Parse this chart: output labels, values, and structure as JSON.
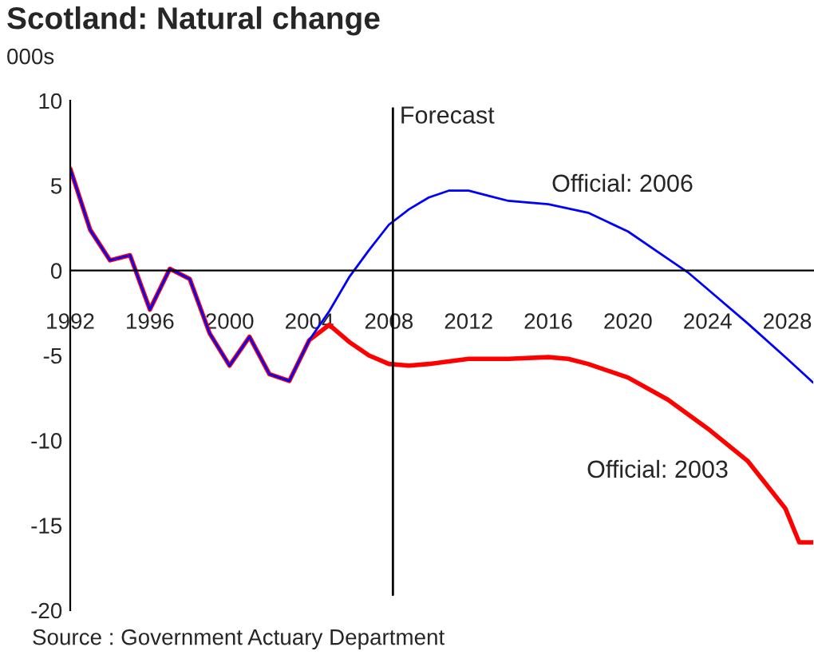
{
  "chart_data": {
    "type": "line",
    "title": "Scotland: Natural change",
    "ylabel": "000s",
    "xlim": [
      1992,
      2029.3
    ],
    "xticks": [
      1992,
      1996,
      2000,
      2004,
      2008,
      2012,
      2016,
      2020,
      2024,
      2028
    ],
    "ylim": [
      -20,
      10
    ],
    "yticks": [
      -20,
      -15,
      -10,
      -5,
      0,
      5,
      10
    ],
    "grid": false,
    "legend": false,
    "marker": "none",
    "line_style": "solid",
    "series": [
      {
        "color": "#ff0000",
        "x": [
          1992,
          1993,
          1994,
          1995,
          1996,
          1997,
          1998,
          1999,
          2000,
          2001,
          2002,
          2003,
          2004,
          2005,
          2006,
          2007,
          2008,
          2009,
          2010,
          2012,
          2014,
          2016,
          2017,
          2018,
          2020,
          2022,
          2024,
          2026,
          2027.9,
          2028.6,
          2029.3
        ],
        "values": [
          6,
          2.4,
          0.6,
          0.9,
          -2.3,
          0.1,
          -0.5,
          -3.7,
          -5.6,
          -3.9,
          -6.1,
          -6.5,
          -4.1,
          -3.2,
          -4.2,
          -5.0,
          -5.5,
          -5.6,
          -5.5,
          -5.2,
          -5.2,
          -5.1,
          -5.2,
          -5.5,
          -6.3,
          -7.6,
          -9.3,
          -11.2,
          -14.0,
          -16.0,
          -16.0
        ]
      },
      {
        "color": "#0000ff",
        "x": [
          1992,
          1993,
          1994,
          1995,
          1996,
          1997,
          1998,
          1999,
          2000,
          2001,
          2002,
          2003,
          2004,
          2005,
          2006,
          2007,
          2008,
          2009,
          2010,
          2011,
          2012,
          2013,
          2014,
          2016,
          2018,
          2020,
          2022,
          2023,
          2024,
          2026,
          2028,
          2029.3
        ],
        "values": [
          6,
          2.4,
          0.6,
          0.9,
          -2.3,
          0.1,
          -0.5,
          -3.7,
          -5.6,
          -3.9,
          -6.1,
          -6.5,
          -4.1,
          -2.4,
          -0.4,
          1.2,
          2.7,
          3.6,
          4.3,
          4.7,
          4.7,
          4.4,
          4.1,
          3.9,
          3.4,
          2.3,
          0.7,
          -0.1,
          -1.1,
          -3.1,
          -5.2,
          -6.6
        ]
      }
    ],
    "ref_lines": [
      {
        "axis": "x",
        "value": 2008.2,
        "label": "Forecast",
        "color": "#000000"
      }
    ],
    "annotations": [
      "Official: 2006",
      "Official: 2003",
      "Source : Government Actuary Department"
    ]
  }
}
